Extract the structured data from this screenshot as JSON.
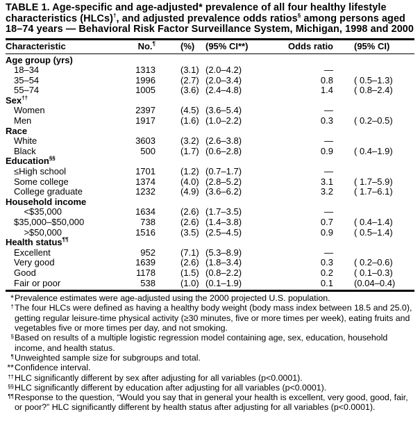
{
  "title": {
    "parts": [
      "TABLE 1. Age-specific and age-adjusted",
      "*",
      " prevalence of all four healthy lifestyle characteristics (HLCs)",
      "†",
      ", and adjusted prevalence odds ratios",
      "§",
      " among persons aged 18–74 years — Behavioral Risk Factor Surveillance System, Michigan, 1998 and 2000"
    ]
  },
  "header": {
    "characteristic": "Characteristic",
    "no": "No.",
    "no_mark": "¶",
    "pct": "(%)",
    "ci": "(95% CI**)",
    "or": "Odds ratio",
    "or_ci": "(95% CI)"
  },
  "groups": [
    {
      "label": "Age group (yrs)",
      "mark": "",
      "rows": [
        {
          "c": "18–34",
          "n": "1313",
          "p": "(3.1)",
          "ci": "(2.0–4.2)",
          "or": "—",
          "orci": ""
        },
        {
          "c": "35–54",
          "n": "1996",
          "p": "(2.7)",
          "ci": "(2.0–3.4)",
          "or": "0.8",
          "orci": "( 0.5–1.3)"
        },
        {
          "c": "55–74",
          "n": "1005",
          "p": "(3.6)",
          "ci": "(2.4–4.8)",
          "or": "1.4",
          "orci": "( 0.8–2.4)"
        }
      ]
    },
    {
      "label": "Sex",
      "mark": "††",
      "rows": [
        {
          "c": "Women",
          "n": "2397",
          "p": "(4.5)",
          "ci": "(3.6–5.4)",
          "or": "—",
          "orci": ""
        },
        {
          "c": "Men",
          "n": "1917",
          "p": "(1.6)",
          "ci": "(1.0–2.2)",
          "or": "0.3",
          "orci": "( 0.2–0.5)"
        }
      ]
    },
    {
      "label": "Race",
      "mark": "",
      "rows": [
        {
          "c": "White",
          "n": "3603",
          "p": "(3.2)",
          "ci": "(2.6–3.8)",
          "or": "—",
          "orci": ""
        },
        {
          "c": "Black",
          "n": "500",
          "p": "(1.7)",
          "ci": "(0.6–2.8)",
          "or": "0.9",
          "orci": "( 0.4–1.9)"
        }
      ]
    },
    {
      "label": "Education",
      "mark": "§§",
      "rows": [
        {
          "c": "≤High school",
          "n": "1701",
          "p": "(1.2)",
          "ci": "(0.7–1.7)",
          "or": "—",
          "orci": ""
        },
        {
          "c": "Some college",
          "n": "1374",
          "p": "(4.0)",
          "ci": "(2.8–5.2)",
          "or": "3.1",
          "orci": "( 1.7–5.9)"
        },
        {
          "c": "College graduate",
          "n": "1232",
          "p": "(4.9)",
          "ci": "(3.6–6.2)",
          "or": "3.2",
          "orci": "( 1.7–6.1)"
        }
      ]
    },
    {
      "label": "Household income",
      "mark": "",
      "indent2": true,
      "rows": [
        {
          "c": "    <$35,000",
          "n": "1634",
          "p": "(2.6)",
          "ci": "(1.7–3.5)",
          "or": "—",
          "orci": ""
        },
        {
          "c": "$35,000–$50,000",
          "n": "738",
          "p": "(2.6)",
          "ci": "(1.4–3.8)",
          "or": "0.7",
          "orci": "( 0.4–1.4)"
        },
        {
          "c": "    >$50,000",
          "n": "1516",
          "p": "(3.5)",
          "ci": "(2.5–4.5)",
          "or": "0.9",
          "orci": "( 0.5–1.4)"
        }
      ]
    },
    {
      "label": "Health status",
      "mark": "¶¶",
      "rows": [
        {
          "c": "Excellent",
          "n": "952",
          "p": "(7.1)",
          "ci": "(5.3–8.9)",
          "or": "—",
          "orci": ""
        },
        {
          "c": "Very good",
          "n": "1639",
          "p": "(2.6)",
          "ci": "(1.8–3.4)",
          "or": "0.3",
          "orci": "( 0.2–0.6)"
        },
        {
          "c": "Good",
          "n": "1178",
          "p": "(1.5)",
          "ci": "(0.8–2.2)",
          "or": "0.2",
          "orci": "( 0.1–0.3)"
        },
        {
          "c": "Fair or poor",
          "n": "538",
          "p": "(1.0)",
          "ci": "(0.1–1.9)",
          "or": "0.1",
          "orci": "(0.04–0.4)"
        }
      ]
    }
  ],
  "footnotes": [
    {
      "mark": "*",
      "text": "Prevalence estimates were age-adjusted using the 2000 projected U.S. population."
    },
    {
      "mark": "†",
      "text": "The four HLCs were defined as having a healthy body weight (body mass index between 18.5 and 25.0), getting regular leisure-time physical activity (≥30 minutes, five or more times per week), eating fruits and vegetables five or more times per day, and not smoking."
    },
    {
      "mark": "§",
      "text": "Based on results of a multiple logistic regression model containing age, sex, education, household income, and health status."
    },
    {
      "mark": "¶",
      "text": "Unweighted sample size for subgroups and total."
    },
    {
      "mark": "**",
      "text": "Confidence interval."
    },
    {
      "mark": "††",
      "text": "HLC significantly different by sex after adjusting for all variables (p<0.0001)."
    },
    {
      "mark": "§§",
      "text": "HLC significantly different by education after adjusting for all variables (p<0.0001)."
    },
    {
      "mark": "¶¶",
      "text": "Response to the question, “Would you say that in general your health is excellent, very good, good, fair, or poor?” HLC significantly different by health status after adjusting for all variables (p<0.0001)."
    }
  ]
}
